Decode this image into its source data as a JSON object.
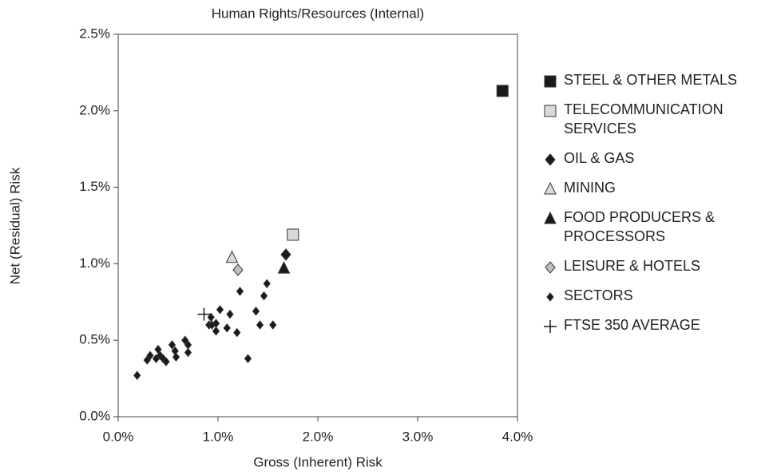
{
  "chart_data": {
    "type": "scatter",
    "title": "Human Rights/Resources (Internal)",
    "x_label": "Gross (Inherent) Risk",
    "y_label": "Net (Residual) Risk",
    "xlim": [
      0,
      4
    ],
    "ylim": [
      0,
      2.5
    ],
    "xticks": [
      {
        "value": 0,
        "label": "0.0%"
      },
      {
        "value": 1,
        "label": "1.0%"
      },
      {
        "value": 2,
        "label": "2.0%"
      },
      {
        "value": 3,
        "label": "3.0%"
      },
      {
        "value": 4,
        "label": "4.0%"
      }
    ],
    "yticks": [
      {
        "value": 0,
        "label": "0.0%"
      },
      {
        "value": 0.5,
        "label": "0.5%"
      },
      {
        "value": 1,
        "label": "1.0%"
      },
      {
        "value": 1.5,
        "label": "1.5%"
      },
      {
        "value": 2,
        "label": "2.0%"
      },
      {
        "value": 2.5,
        "label": "2.5%"
      }
    ],
    "series": [
      {
        "name": "STEEL & OTHER METALS",
        "color": "#1a1a1a",
        "marker": "square",
        "x": [
          3.85
        ],
        "y": [
          2.13
        ]
      },
      {
        "name": "TELECOMMUNICATION SERVICES",
        "color": "#d9d9d9",
        "marker": "square",
        "x": [
          1.75
        ],
        "y": [
          1.19
        ]
      },
      {
        "name": "OIL & GAS",
        "color": "#1a1a1a",
        "marker": "diamond",
        "x": [
          1.68
        ],
        "y": [
          1.06
        ]
      },
      {
        "name": "MINING",
        "color": "#d9d9d9",
        "marker": "triangle",
        "x": [
          1.14
        ],
        "y": [
          1.04
        ]
      },
      {
        "name": "FOOD PRODUCERS & PROCESSORS",
        "color": "#1a1a1a",
        "marker": "triangle",
        "x": [
          1.66
        ],
        "y": [
          0.97
        ]
      },
      {
        "name": "LEISURE & HOTELS",
        "color": "#c0c0c0",
        "marker": "diamond",
        "x": [
          1.2
        ],
        "y": [
          0.96
        ]
      },
      {
        "name": "SECTORS",
        "color": "#1a1a1a",
        "marker": "small-diamond",
        "x": [
          0.19,
          0.29,
          0.32,
          0.38,
          0.42,
          0.4,
          0.45,
          0.48,
          0.54,
          0.57,
          0.58,
          0.67,
          0.7,
          0.7,
          0.91,
          0.93,
          0.94,
          0.98,
          0.98,
          1.02,
          1.09,
          1.12,
          1.19,
          1.22,
          1.3,
          1.38,
          1.42,
          1.46,
          1.49,
          1.55
        ],
        "y": [
          0.27,
          0.37,
          0.4,
          0.38,
          0.4,
          0.44,
          0.38,
          0.36,
          0.47,
          0.43,
          0.39,
          0.5,
          0.47,
          0.42,
          0.6,
          0.65,
          0.6,
          0.56,
          0.61,
          0.7,
          0.58,
          0.67,
          0.55,
          0.82,
          0.38,
          0.69,
          0.6,
          0.79,
          0.87,
          0.6
        ]
      },
      {
        "name": "FTSE 350 AVERAGE",
        "color": "#1a1a1a",
        "marker": "cross",
        "x": [
          0.86
        ],
        "y": [
          0.67
        ]
      }
    ]
  }
}
